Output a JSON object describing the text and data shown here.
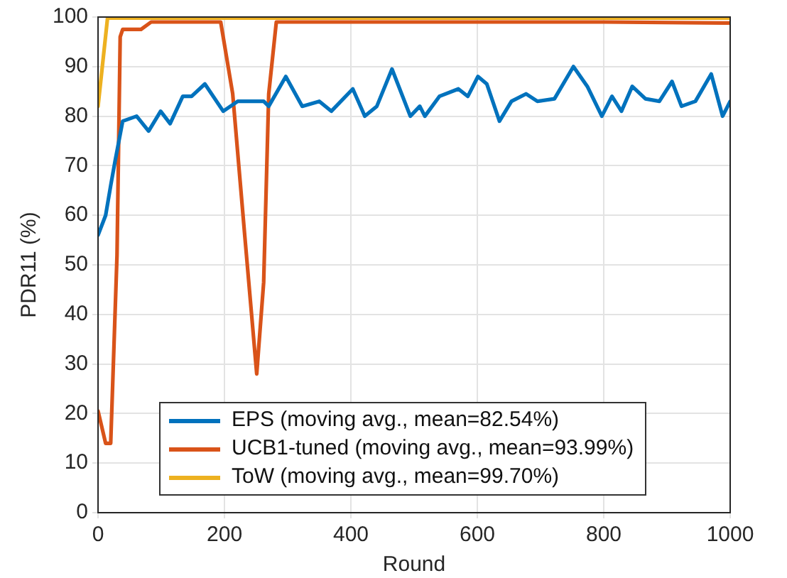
{
  "chart_data": {
    "type": "line",
    "xlabel": "Round",
    "ylabel": "PDR11 (%)",
    "xlim": [
      0,
      1000
    ],
    "xticks": [
      0,
      200,
      400,
      600,
      800,
      1000
    ],
    "ylim": [
      0,
      100
    ],
    "yticks": [
      0,
      10,
      20,
      30,
      40,
      50,
      60,
      70,
      80,
      90,
      100
    ],
    "grid": true,
    "legend": "bottom",
    "marker": "none",
    "line_style": "solid",
    "series": [
      {
        "name": "EPS (moving avg., mean=82.54%)",
        "color": "#0072bd",
        "x": [
          0,
          12,
          20,
          27,
          39,
          61,
          80,
          99,
          114,
          134,
          148,
          169,
          198,
          221,
          262,
          270,
          297,
          323,
          350,
          369,
          403,
          422,
          441,
          465,
          494,
          509,
          517,
          540,
          570,
          585,
          601,
          615,
          635,
          654,
          677,
          695,
          722,
          752,
          774,
          797,
          813,
          828,
          845,
          866,
          888,
          908,
          923,
          945,
          970,
          988,
          1000
        ],
        "values": [
          56,
          60,
          66,
          71,
          79,
          80,
          77,
          81,
          78.5,
          84,
          84,
          86.5,
          81,
          83,
          83,
          82,
          88,
          82,
          83,
          81,
          85.5,
          80,
          82,
          89.5,
          80,
          82,
          80,
          84,
          85.5,
          84,
          88,
          86.5,
          79,
          83,
          84.5,
          83,
          83.5,
          90,
          86,
          80,
          84,
          81,
          86,
          83.5,
          83,
          87,
          82,
          83,
          88.5,
          80,
          83
        ]
      },
      {
        "name": "UCB1-tuned (moving avg., mean=93.99%)",
        "color": "#d95319",
        "x": [
          0,
          12,
          20,
          30,
          35,
          39,
          68,
          84,
          194,
          213,
          232,
          251,
          262,
          270,
          282,
          400,
          600,
          800,
          1000
        ],
        "values": [
          20.5,
          14,
          14,
          52,
          96,
          97.5,
          97.5,
          99,
          99,
          84.5,
          56,
          28,
          46.5,
          84.5,
          99,
          99,
          99,
          99,
          98.8
        ]
      },
      {
        "name": "ToW (moving avg., mean=99.70%)",
        "color": "#edb120",
        "x": [
          0,
          15,
          1000
        ],
        "values": [
          82,
          99.8,
          99.8
        ]
      }
    ]
  }
}
